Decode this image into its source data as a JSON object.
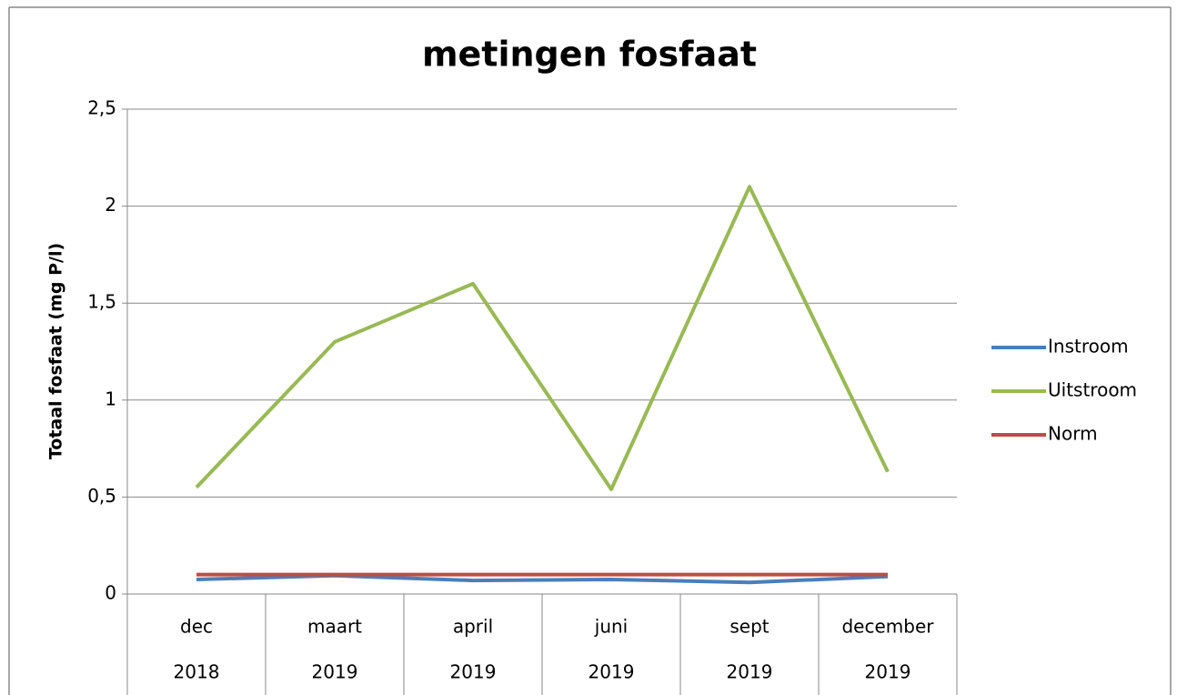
{
  "chart_data": {
    "type": "line",
    "title": "metingen fosfaat",
    "y_label": "Totaal fosfaat (mg P/l)",
    "categories": [
      "dec",
      "maart",
      "april",
      "juni",
      "sept",
      "december"
    ],
    "years": [
      "2018",
      "2019",
      "2019",
      "2019",
      "2019",
      "2019"
    ],
    "series": [
      {
        "name": "Instroom",
        "color": "#4a7ebb",
        "values": [
          0.075,
          0.095,
          0.07,
          0.075,
          0.06,
          0.09
        ]
      },
      {
        "name": "Uitstroom",
        "color": "#98b954",
        "values": [
          0.55,
          1.3,
          1.6,
          0.54,
          2.1,
          0.63
        ]
      },
      {
        "name": "Norm",
        "color": "#be4b48",
        "values": [
          0.1,
          0.1,
          0.1,
          0.1,
          0.1,
          0.1
        ]
      }
    ],
    "ylim": [
      0,
      2.5
    ],
    "yticks": [
      0,
      {
        "value": 0.5,
        "label": "0,5"
      },
      1,
      {
        "value": 1.5,
        "label": "1,5"
      },
      2,
      {
        "value": 2.5,
        "label": "2,5"
      }
    ],
    "grid": true,
    "legend": "right"
  }
}
